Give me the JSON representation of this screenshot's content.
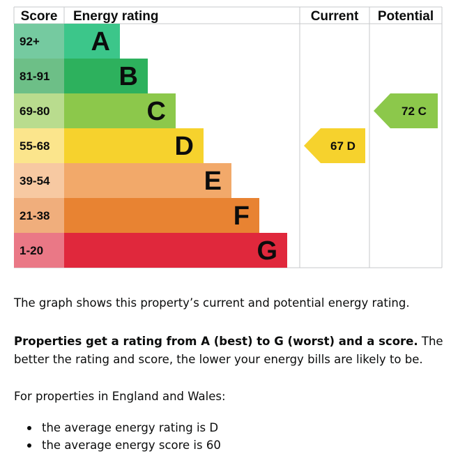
{
  "chart_data": {
    "type": "bar",
    "headers": {
      "score": "Score",
      "rating": "Energy rating",
      "current": "Current",
      "potential": "Potential"
    },
    "bands": [
      {
        "score": "92+",
        "letter": "A",
        "color": "#3cc68a",
        "score_color": "#75caa0",
        "width": 0.2
      },
      {
        "score": "81-91",
        "letter": "B",
        "color": "#2db15d",
        "score_color": "#6dbf87",
        "width": 0.3
      },
      {
        "score": "69-80",
        "letter": "C",
        "color": "#8cc84b",
        "score_color": "#b9dc8e",
        "width": 0.4
      },
      {
        "score": "55-68",
        "letter": "D",
        "color": "#f6d22d",
        "score_color": "#fbe58c",
        "width": 0.5
      },
      {
        "score": "39-54",
        "letter": "E",
        "color": "#f2a96a",
        "score_color": "#f7c9a2",
        "width": 0.6
      },
      {
        "score": "21-38",
        "letter": "F",
        "color": "#e88332",
        "score_color": "#f0ae7c",
        "width": 0.7
      },
      {
        "score": "1-20",
        "letter": "G",
        "color": "#e0283c",
        "score_color": "#ea7886",
        "width": 0.8
      }
    ],
    "current": {
      "value": 67,
      "letter": "D",
      "label": "67  D",
      "color": "#f6d22d"
    },
    "potential": {
      "value": 72,
      "letter": "C",
      "label": "72  C",
      "color": "#8cc84b"
    }
  },
  "text": {
    "p1": "The graph shows this property’s current and potential energy rating.",
    "p2_bold": "Properties get a rating from A (best) to G (worst) and a score.",
    "p2_rest": " The better the rating and score, the lower your energy bills are likely to be.",
    "p3": "For properties in England and Wales:",
    "bullets": [
      "the average energy rating is D",
      "the average energy score is 60"
    ]
  }
}
